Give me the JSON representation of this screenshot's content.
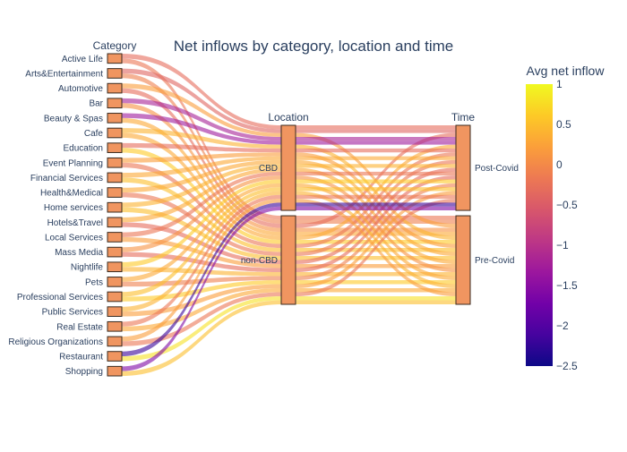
{
  "chart_data": {
    "type": "parallel_categories",
    "title": "Net inflows by category, location and time",
    "dimensions": [
      {
        "label": "Category",
        "categories": [
          "Active Life",
          "Arts&Entertainment",
          "Automotive",
          "Bar",
          "Beauty & Spas",
          "Cafe",
          "Education",
          "Event Planning",
          "Financial Services",
          "Health&Medical",
          "Home services",
          "Hotels&Travel",
          "Local Services",
          "Mass Media",
          "Nightlife",
          "Pets",
          "Professional Services",
          "Public Services",
          "Real Estate",
          "Religious Organizations",
          "Restaurant",
          "Shopping"
        ]
      },
      {
        "label": "Location",
        "categories": [
          "CBD",
          "non-CBD"
        ],
        "shares": [
          0.49,
          0.51
        ]
      },
      {
        "label": "Time",
        "categories": [
          "Post-Covid",
          "Pre-Covid"
        ],
        "shares": [
          0.49,
          0.51
        ]
      }
    ],
    "colorbar": {
      "title": "Avg net inflow",
      "range": [
        -2.5,
        1
      ],
      "tick_values": [
        1,
        0.5,
        0,
        -0.5,
        -1,
        -1.5,
        -2,
        -2.5
      ],
      "tick_labels": [
        "1",
        "0.5",
        "0",
        "−0.5",
        "−1",
        "−1.5",
        "−2",
        "−2.5"
      ],
      "colorscale": [
        "#0d0887",
        "#46039f",
        "#7201a8",
        "#9c179e",
        "#bd3786",
        "#d8576b",
        "#ed7953",
        "#fb9f3a",
        "#fdca26",
        "#f0f921"
      ]
    },
    "flows": [
      {
        "category": 0,
        "location": "CBD",
        "time": "Post-Covid",
        "value": -0.3
      },
      {
        "category": 0,
        "location": "non-CBD",
        "time": "Pre-Covid",
        "value": -0.2
      },
      {
        "category": 1,
        "location": "CBD",
        "time": "Post-Covid",
        "value": -0.4
      },
      {
        "category": 1,
        "location": "non-CBD",
        "time": "Pre-Covid",
        "value": -0.1
      },
      {
        "category": 2,
        "location": "CBD",
        "time": "Pre-Covid",
        "value": 0.2
      },
      {
        "category": 2,
        "location": "non-CBD",
        "time": "Post-Covid",
        "value": -0.3
      },
      {
        "category": 3,
        "location": "CBD",
        "time": "Post-Covid",
        "value": -1.2
      },
      {
        "category": 3,
        "location": "non-CBD",
        "time": "Pre-Covid",
        "value": 0.1
      },
      {
        "category": 4,
        "location": "CBD",
        "time": "Post-Covid",
        "value": -1.3
      },
      {
        "category": 4,
        "location": "non-CBD",
        "time": "Pre-Covid",
        "value": 0.3
      },
      {
        "category": 5,
        "location": "CBD",
        "time": "Pre-Covid",
        "value": 0.4
      },
      {
        "category": 5,
        "location": "non-CBD",
        "time": "Post-Covid",
        "value": 0.3
      },
      {
        "category": 6,
        "location": "CBD",
        "time": "Post-Covid",
        "value": -0.3
      },
      {
        "category": 6,
        "location": "non-CBD",
        "time": "Pre-Covid",
        "value": 0.6
      },
      {
        "category": 7,
        "location": "CBD",
        "time": "Pre-Covid",
        "value": 0.2
      },
      {
        "category": 7,
        "location": "non-CBD",
        "time": "Post-Covid",
        "value": -0.2
      },
      {
        "category": 8,
        "location": "CBD",
        "time": "Post-Covid",
        "value": 0.3
      },
      {
        "category": 8,
        "location": "non-CBD",
        "time": "Pre-Covid",
        "value": 0.5
      },
      {
        "category": 9,
        "location": "CBD",
        "time": "Pre-Covid",
        "value": 0.3
      },
      {
        "category": 9,
        "location": "non-CBD",
        "time": "Post-Covid",
        "value": -0.2
      },
      {
        "category": 10,
        "location": "CBD",
        "time": "Post-Covid",
        "value": 0.4
      },
      {
        "category": 10,
        "location": "non-CBD",
        "time": "Pre-Covid",
        "value": 0.5
      },
      {
        "category": 11,
        "location": "CBD",
        "time": "Pre-Covid",
        "value": 0.3
      },
      {
        "category": 11,
        "location": "non-CBD",
        "time": "Post-Covid",
        "value": -0.3
      },
      {
        "category": 12,
        "location": "CBD",
        "time": "Post-Covid",
        "value": -0.2
      },
      {
        "category": 12,
        "location": "non-CBD",
        "time": "Pre-Covid",
        "value": 0.2
      },
      {
        "category": 13,
        "location": "CBD",
        "time": "Pre-Covid",
        "value": 0.1
      },
      {
        "category": 13,
        "location": "non-CBD",
        "time": "Post-Covid",
        "value": -0.3
      },
      {
        "category": 14,
        "location": "CBD",
        "time": "Post-Covid",
        "value": 0.6
      },
      {
        "category": 14,
        "location": "non-CBD",
        "time": "Pre-Covid",
        "value": 0.4
      },
      {
        "category": 15,
        "location": "CBD",
        "time": "Pre-Covid",
        "value": 0.3
      },
      {
        "category": 15,
        "location": "non-CBD",
        "time": "Post-Covid",
        "value": -0.1
      },
      {
        "category": 16,
        "location": "CBD",
        "time": "Post-Covid",
        "value": 0.5
      },
      {
        "category": 16,
        "location": "non-CBD",
        "time": "Pre-Covid",
        "value": 0.6
      },
      {
        "category": 17,
        "location": "CBD",
        "time": "Pre-Covid",
        "value": 0.4
      },
      {
        "category": 17,
        "location": "non-CBD",
        "time": "Post-Covid",
        "value": 0.2
      },
      {
        "category": 18,
        "location": "CBD",
        "time": "Post-Covid",
        "value": -0.2
      },
      {
        "category": 18,
        "location": "non-CBD",
        "time": "Pre-Covid",
        "value": 0.3
      },
      {
        "category": 19,
        "location": "CBD",
        "time": "Pre-Covid",
        "value": 0.2
      },
      {
        "category": 19,
        "location": "non-CBD",
        "time": "Post-Covid",
        "value": -0.2
      },
      {
        "category": 20,
        "location": "CBD",
        "time": "Post-Covid",
        "value": -2.2
      },
      {
        "category": 20,
        "location": "non-CBD",
        "time": "Pre-Covid",
        "value": 0.8
      },
      {
        "category": 21,
        "location": "CBD",
        "time": "Post-Covid",
        "value": -1.6
      },
      {
        "category": 21,
        "location": "non-CBD",
        "time": "Pre-Covid",
        "value": 0.5
      }
    ]
  }
}
